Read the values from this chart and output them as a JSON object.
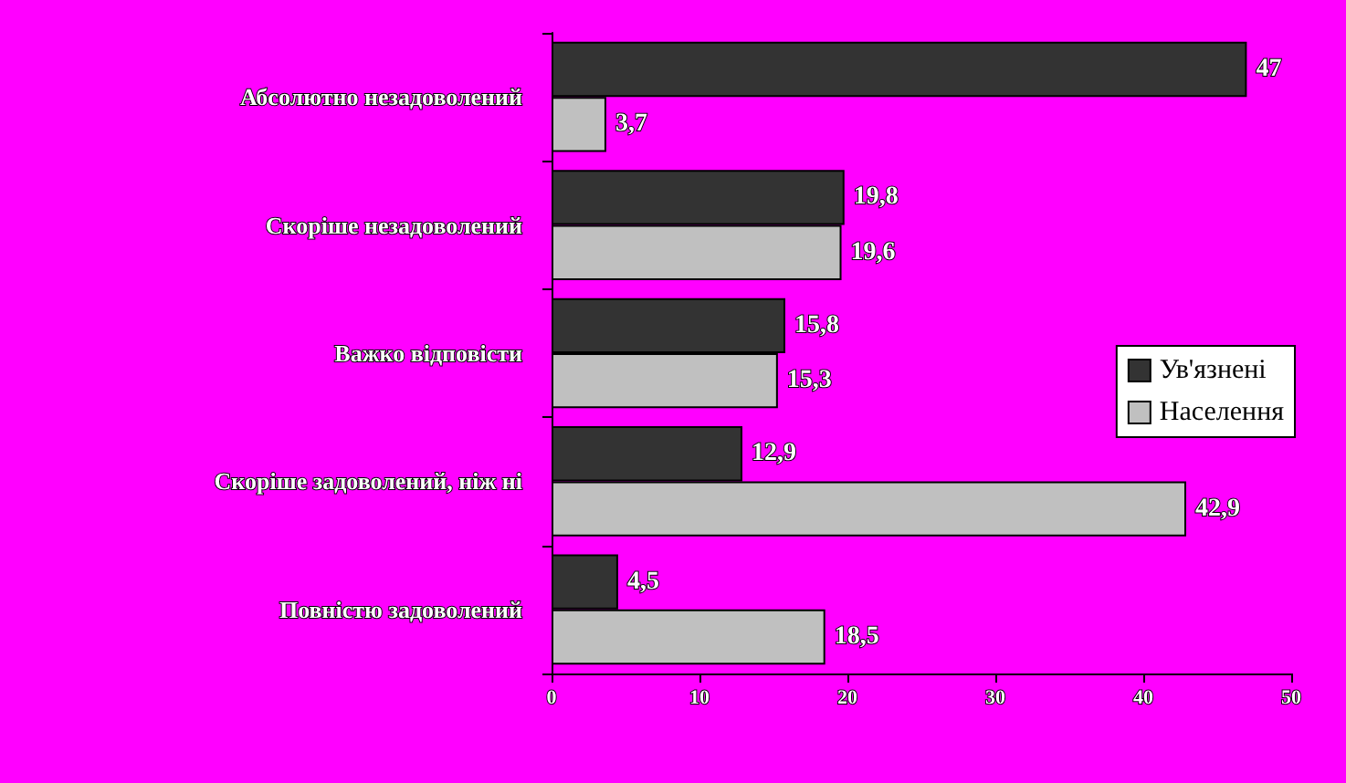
{
  "chart_data": {
    "type": "bar",
    "orientation": "horizontal",
    "categories": [
      "Абсолютно незадоволений",
      "Скоріше незадоволений",
      "Важко відповісти",
      "Скоріше задоволений, ніж ні",
      "Повністю задоволений"
    ],
    "series": [
      {
        "name": "Ув'язнені",
        "color": "#333333",
        "values": [
          47,
          19.8,
          15.8,
          12.9,
          4.5
        ],
        "value_labels": [
          "47",
          "19,8",
          "15,8",
          "12,9",
          "4,5"
        ]
      },
      {
        "name": "Населення",
        "color": "#c0c0c0",
        "values": [
          3.7,
          19.6,
          15.3,
          42.9,
          18.5
        ],
        "value_labels": [
          "3,7",
          "19,6",
          "15,3",
          "42,9",
          "18,5"
        ]
      }
    ],
    "xlim": [
      0,
      50
    ],
    "xticks": [
      0,
      10,
      20,
      30,
      40,
      50
    ],
    "grid": false,
    "legend": "right"
  }
}
